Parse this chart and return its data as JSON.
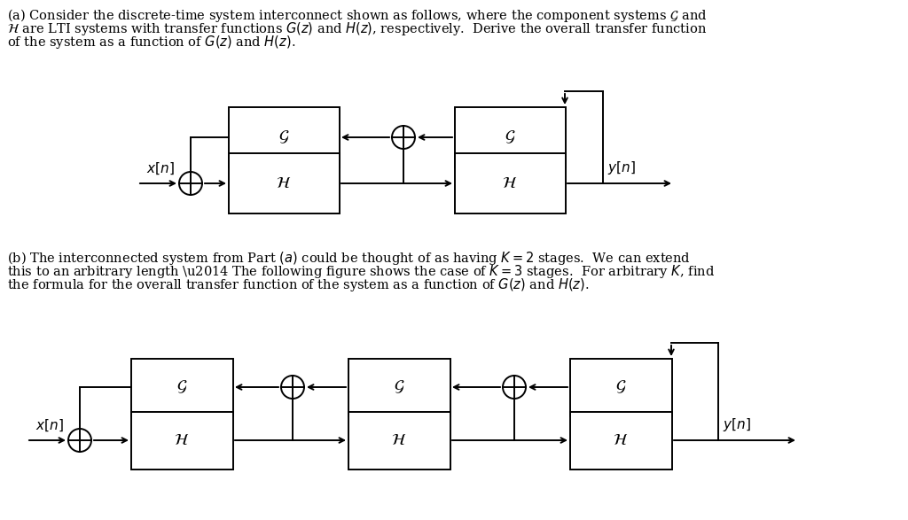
{
  "bg_color": "#ffffff",
  "text_color": "#000000",
  "font_size_text": 10.5,
  "font_size_label": 11,
  "font_size_box": 13,
  "part_a_text_line1": "(a) Consider the discrete-time system interconnect shown as follows, where the component systems $\\mathcal{G}$ and",
  "part_a_text_line2": "$\\mathcal{H}$ are LTI systems with transfer functions $G(z)$ and $H(z)$, respectively.  Derive the overall transfer function",
  "part_a_text_line3": "of the system as a function of $G(z)$ and $H(z)$.",
  "part_b_text_line1": "(b) The interconnected system from Part $(a)$ could be thought of as having $K = 2$ stages.  We can extend",
  "part_b_text_line2": "this to an arbitrary length \\u2014 The following figure shows the case of $K = 3$ stages.  For arbitrary $K$, find",
  "part_b_text_line3": "the formula for the overall transfer function of the system as a function of $G(z)$ and $H(z)$."
}
